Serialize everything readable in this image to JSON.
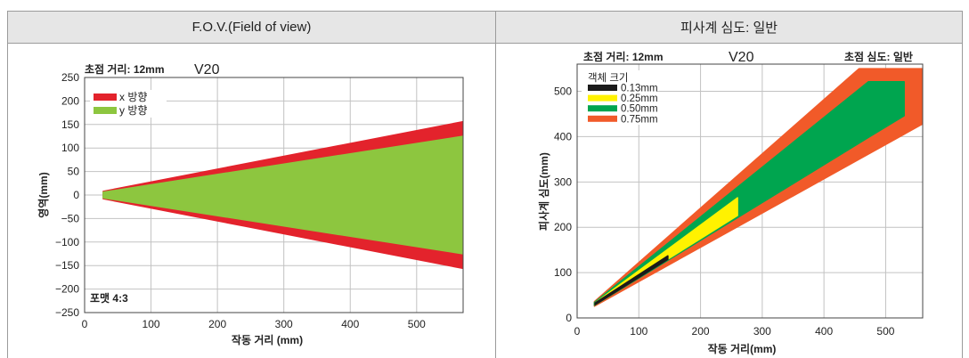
{
  "table": {
    "headers": [
      "F.O.V.(Field of view)",
      "피사계 심도: 일반"
    ]
  },
  "colors": {
    "header_background": "#e6e6e6",
    "border": "#9b9b9b",
    "grid": "#c2c2c2",
    "plot_frame": "#444444"
  },
  "chart_data": [
    {
      "type": "area",
      "title": "V20",
      "focal_length_note": "초점 거리: 12mm",
      "format_note": "포맷 4:3",
      "xlabel": "작동 거리 (mm)",
      "ylabel": "영역(mm)",
      "xlim": [
        0,
        570
      ],
      "ylim": [
        -250,
        250
      ],
      "x_ticks": [
        0,
        100,
        200,
        300,
        400,
        500
      ],
      "x_tick_labels": [
        "0",
        "100",
        "200",
        "300",
        "400",
        "500"
      ],
      "y_ticks": [
        250,
        200,
        150,
        100,
        50,
        0,
        -50,
        -100,
        -150,
        -200,
        -250
      ],
      "y_tick_labels": [
        "250",
        "200",
        "150",
        "100",
        "50",
        "0",
        "−50",
        "−100",
        "−150",
        "−200",
        "−250"
      ],
      "grid": true,
      "legend_placement": "top-left",
      "series": [
        {
          "name": "x 방향",
          "color": "#e3232c",
          "x": [
            28,
            570
          ],
          "upper": [
            8,
            156
          ],
          "lower": [
            -8,
            -156
          ]
        },
        {
          "name": "y 방향",
          "color": "#8dc63f",
          "x": [
            28,
            570
          ],
          "upper": [
            6,
            125
          ],
          "lower": [
            -6,
            -125
          ]
        }
      ]
    },
    {
      "type": "area",
      "title": "V20",
      "focal_length_note": "초점 거리: 12mm",
      "depth_note": "초점 심도: 일반",
      "xlabel": "작동 거리(mm)",
      "ylabel": "피사계 심도(mm)",
      "xlim": [
        0,
        560
      ],
      "ylim": [
        0,
        560
      ],
      "x_ticks": [
        0,
        100,
        200,
        300,
        400,
        500
      ],
      "x_tick_labels": [
        "0",
        "100",
        "200",
        "300",
        "400",
        "500"
      ],
      "y_ticks": [
        0,
        100,
        200,
        300,
        400,
        500
      ],
      "y_tick_labels": [
        "0",
        "100",
        "200",
        "300",
        "400",
        "500"
      ],
      "grid": true,
      "legend_title": "객체 크기",
      "legend_placement": "top-left",
      "series": [
        {
          "name": "0.13mm",
          "color": "#1a1a1a",
          "x": [
            29,
            147
          ],
          "upper": [
            33,
            137
          ],
          "lower": [
            29,
            129
          ]
        },
        {
          "name": "0.25mm",
          "color": "#fff200",
          "x": [
            29,
            260
          ],
          "upper": [
            33,
            265
          ],
          "lower": [
            29,
            226
          ]
        },
        {
          "name": "0.50mm",
          "color": "#00a54f",
          "x": [
            28,
            472,
            530
          ],
          "upper": [
            34,
            521,
            521
          ],
          "lower": [
            28,
            398,
            446
          ]
        },
        {
          "name": "0.75mm",
          "color": "#f15a29",
          "x": [
            28,
            457,
            560
          ],
          "upper": [
            36,
            550,
            550
          ],
          "lower": [
            26,
            350,
            428
          ]
        }
      ]
    }
  ]
}
